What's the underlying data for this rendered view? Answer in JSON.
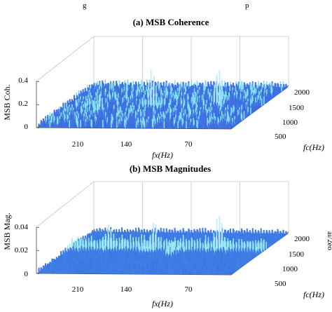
{
  "page": {
    "top_text": "g",
    "top_text_right": "p",
    "side_text": "ai/2eo"
  },
  "chart_data": [
    {
      "type": "surface3d",
      "title": "(a) MSB Coherence",
      "xlabel": "fx(Hz)",
      "ylabel": "fc(Hz)",
      "zlabel": "MSB Coh.",
      "x_ticks": [
        "210",
        "140",
        "70"
      ],
      "y_ticks": [
        "2000",
        "1500",
        "1000",
        "500"
      ],
      "z_ticks": [
        "0",
        "0.2",
        "0.4"
      ],
      "xlim": [
        0,
        250
      ],
      "ylim": [
        350,
        2150
      ],
      "zlim": [
        0,
        0.4
      ],
      "noise_level": 0.06,
      "peaks": [
        {
          "fx": 140,
          "fc": 1300,
          "value": 0.3
        },
        {
          "fx": 60,
          "fc": 1400,
          "value": 0.32
        },
        {
          "fx": 200,
          "fc": 1100,
          "value": 0.12
        }
      ],
      "colors": {
        "surface": "#2f5fdc",
        "peak": "#7fe0f5",
        "highlight": "#cfe9ff"
      }
    },
    {
      "type": "surface3d",
      "title": "(b) MSB Magnitudes",
      "xlabel": "fx(Hz)",
      "ylabel": "fc(Hz)",
      "zlabel": "MSB Mag.",
      "x_ticks": [
        "210",
        "140",
        "70"
      ],
      "y_ticks": [
        "2000",
        "1500",
        "1000",
        "500"
      ],
      "z_ticks": [
        "0",
        "0.02",
        "0.04"
      ],
      "xlim": [
        0,
        250
      ],
      "ylim": [
        350,
        2150
      ],
      "zlim": [
        0,
        0.04
      ],
      "noise_level": 0.0045,
      "ridge_fc": 1400,
      "ridge_level": 0.009,
      "peaks": [
        {
          "fx": 60,
          "fc": 1450,
          "value": 0.026
        },
        {
          "fx": 140,
          "fc": 1350,
          "value": 0.017
        },
        {
          "fx": 200,
          "fc": 1400,
          "value": 0.013
        },
        {
          "fx": 110,
          "fc": 1200,
          "value": 0.01
        }
      ],
      "colors": {
        "surface": "#2f6fe0",
        "peak": "#8ee8f0",
        "highlight": "#cfe9ff"
      }
    }
  ]
}
